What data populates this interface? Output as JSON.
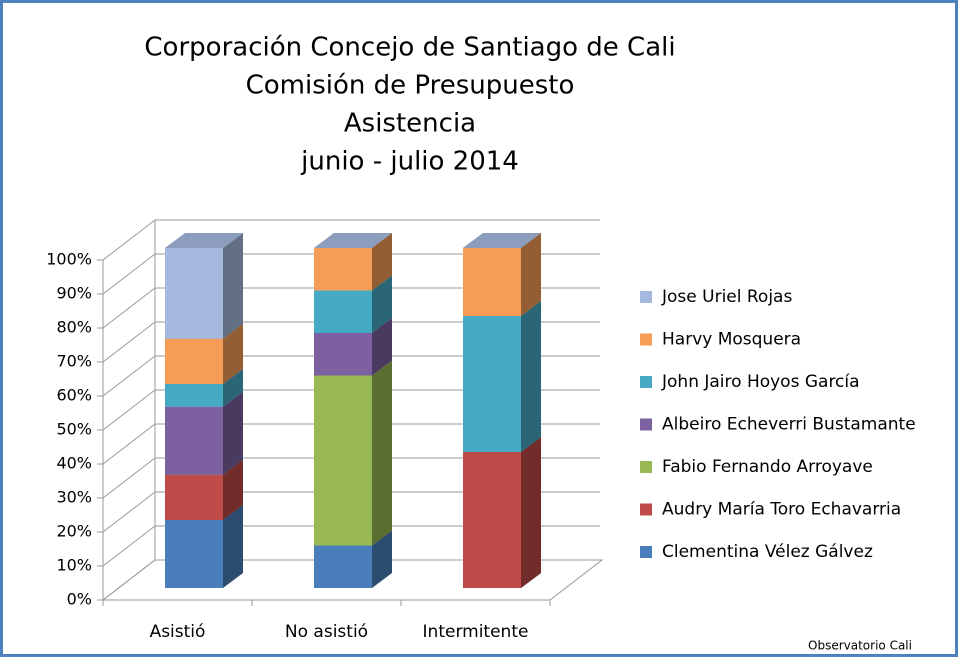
{
  "chart_data": {
    "type": "bar3d_stacked",
    "title": [
      "Corporación Concejo de Santiago de Cali",
      "Comisión de Presupuesto",
      "Asistencia",
      "junio - julio 2014"
    ],
    "categories": [
      "Asistió",
      "No asistió",
      "Intermitente"
    ],
    "series": [
      {
        "name": "Clementina Vélez Gálvez",
        "color": "#4a7ebb",
        "values": [
          20,
          12.5,
          0
        ]
      },
      {
        "name": "Audry María Toro Echavarria",
        "color": "#be4b48",
        "values": [
          13.3,
          0,
          40
        ]
      },
      {
        "name": "Fabio Fernando Arroyave",
        "color": "#98b954",
        "values": [
          0,
          50,
          0
        ]
      },
      {
        "name": "Albeiro Echeverri Bustamante",
        "color": "#7d60a0",
        "values": [
          20,
          12.5,
          0
        ]
      },
      {
        "name": "John Jairo Hoyos García",
        "color": "#46aac5",
        "values": [
          6.7,
          12.5,
          40
        ]
      },
      {
        "name": "Harvy Mosquera",
        "color": "#f59d56",
        "values": [
          13.3,
          12.5,
          20
        ]
      },
      {
        "name": "Jose Uriel Rojas",
        "color": "#a5b9de",
        "values": [
          26.7,
          0,
          0
        ]
      }
    ],
    "ylim": [
      0,
      100
    ],
    "yticks": [
      {
        "value": 0,
        "label": "0%"
      },
      {
        "value": 10,
        "label": "10%"
      },
      {
        "value": 20,
        "label": "20%"
      },
      {
        "value": 30,
        "label": "30%"
      },
      {
        "value": 40,
        "label": "40%"
      },
      {
        "value": 50,
        "label": "50%"
      },
      {
        "value": 60,
        "label": "60%"
      },
      {
        "value": 70,
        "label": "70%"
      },
      {
        "value": 80,
        "label": "80%"
      },
      {
        "value": 90,
        "label": "90%"
      },
      {
        "value": 100,
        "label": "100%"
      }
    ],
    "grid": true,
    "legend": "right",
    "source": "Observatorio Cali"
  }
}
